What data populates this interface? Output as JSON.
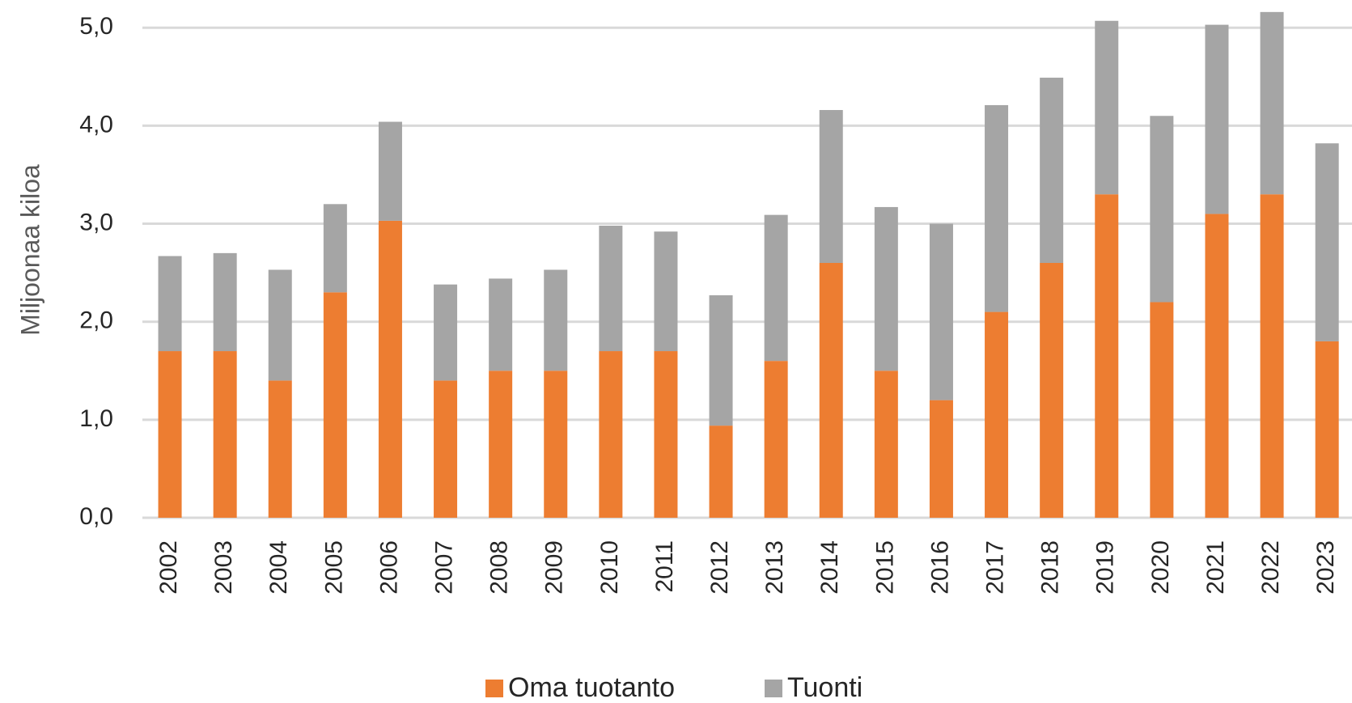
{
  "chart_data": {
    "type": "stacked-bar",
    "y_label": "Miljoonaa kiloa",
    "categories": [
      "2002",
      "2003",
      "2004",
      "2005",
      "2006",
      "2007",
      "2008",
      "2009",
      "2010",
      "2011",
      "2012",
      "2013",
      "2014",
      "2015",
      "2016",
      "2017",
      "2018",
      "2019",
      "2020",
      "2021",
      "2022",
      "2023"
    ],
    "series": [
      {
        "name": "Oma tuotanto",
        "color": "#ED7D31",
        "values": [
          1.7,
          1.7,
          1.4,
          2.3,
          3.03,
          1.4,
          1.5,
          1.5,
          1.7,
          1.7,
          0.94,
          1.6,
          2.6,
          1.5,
          1.2,
          2.1,
          2.6,
          3.3,
          2.2,
          3.1,
          3.3,
          1.8
        ]
      },
      {
        "name": "Tuonti",
        "color": "#A5A5A5",
        "values": [
          0.97,
          1.0,
          1.13,
          0.9,
          1.01,
          0.98,
          0.94,
          1.03,
          1.28,
          1.22,
          1.33,
          1.49,
          1.56,
          1.67,
          1.8,
          2.11,
          1.89,
          1.77,
          1.9,
          1.93,
          1.86,
          2.02
        ]
      }
    ],
    "ylim": [
      0,
      5.2
    ],
    "yticks": [
      {
        "value": 0,
        "label": "0,0"
      },
      {
        "value": 1,
        "label": "1,0"
      },
      {
        "value": 2,
        "label": "2,0"
      },
      {
        "value": 3,
        "label": "3,0"
      },
      {
        "value": 4,
        "label": "4,0"
      },
      {
        "value": 5,
        "label": "5,0"
      }
    ],
    "grid": true,
    "legend": "bottom"
  }
}
